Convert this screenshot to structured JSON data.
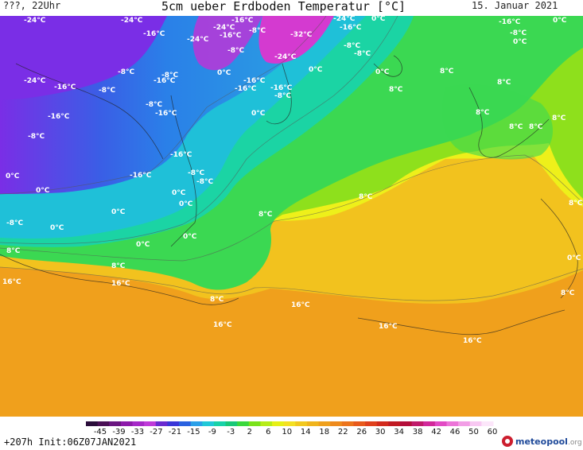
{
  "header": {
    "left": "???, 22Uhr",
    "title": "5cm ueber Erdboden Temperatur [°C]",
    "date": "15. Januar 2021"
  },
  "map": {
    "labels": [
      "-24°C",
      "-24°C",
      "-16°C",
      "-24°C",
      "-24°C",
      "-16°C",
      "-16°C",
      "-8°C",
      "-32°C",
      "-24°C",
      "-16°C",
      "0°C",
      "-16°C",
      "-8°C",
      "-8°C",
      "0°C",
      "-8°C",
      "-24°C",
      "-8°C",
      "0°C",
      "0°C",
      "0°C",
      "-16°C",
      "-16°C",
      "-8°C",
      "-24°C",
      "-16°C",
      "-8°C",
      "-8°C",
      "-16°C",
      "-16°C",
      "-8°C",
      "-8°C",
      "-16°C",
      "-16°C",
      "-8°C",
      "-16°C",
      "0°C",
      "0°C",
      "8°C",
      "8°C",
      "8°C",
      "-8°C",
      "-16°C",
      "-8°C",
      "0°C",
      "0°C",
      "0°C",
      "8°C",
      "8°C",
      "-8°C",
      "0°C",
      "8°C",
      "8°C",
      "8°C",
      "0°C",
      "0°C",
      "0°C",
      "0°C",
      "8°C",
      "8°C",
      "0°C",
      "8°C",
      "8°C",
      "16°C",
      "16°C",
      "8°C",
      "16°C",
      "16°C",
      "16°C",
      "16°C",
      "8°C"
    ]
  },
  "colorbar": {
    "ticks": [
      "-45",
      "-39",
      "-33",
      "-27",
      "-21",
      "-15",
      "-9",
      "-3",
      "2",
      "6",
      "10",
      "14",
      "18",
      "22",
      "26",
      "30",
      "34",
      "38",
      "42",
      "46",
      "50",
      "60"
    ],
    "colors": [
      "#2a0d3a",
      "#4a0f55",
      "#6a1580",
      "#8d1aaa",
      "#a628c8",
      "#bf3ad9",
      "#6a2ad0",
      "#3a36d8",
      "#2a62e0",
      "#2aa0e8",
      "#20c8d8",
      "#18d2a8",
      "#19c878",
      "#3ad83c",
      "#7ae21a",
      "#b6ec18",
      "#e6f016",
      "#f4e022",
      "#f2c81e",
      "#f0b41c",
      "#efa01c",
      "#ee8a1c",
      "#ec741c",
      "#e85a1c",
      "#e0401c",
      "#d22a1c",
      "#c01a22",
      "#b40e3a",
      "#c01a6a",
      "#d2289a",
      "#e24ac4",
      "#ec74d8",
      "#f29ee6",
      "#f8c8f2",
      "#fce6fa"
    ]
  },
  "footer": {
    "run_info": "+207h Init:06Z07JAN2021",
    "brand_name": "meteopool",
    "brand_tld": ".org"
  },
  "colors": {
    "field_violet": "#7a2ee6",
    "field_blue": "#3a5ee6",
    "field_cyan": "#1fc0d8",
    "field_teal": "#1bd4a4",
    "field_green": "#3bd852",
    "field_lime": "#8ee01c",
    "field_yellow": "#eef01a",
    "field_gold": "#f2c21e",
    "field_orange": "#f0a01c"
  }
}
